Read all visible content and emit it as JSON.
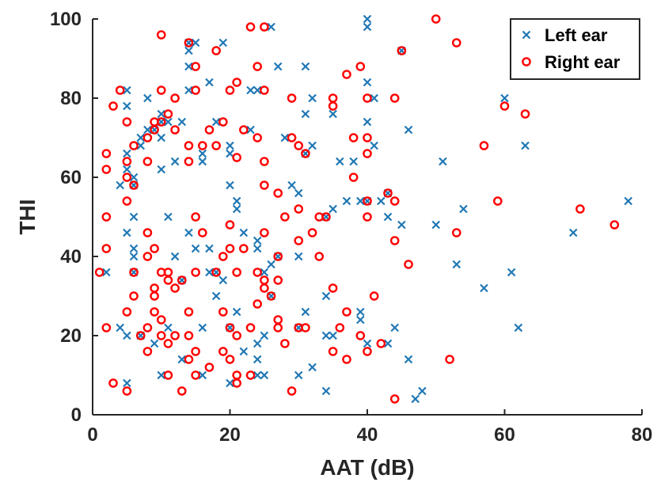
{
  "chart_data": {
    "type": "scatter",
    "xlabel": "AAT (dB)",
    "ylabel": "THI",
    "xlim": [
      0,
      80
    ],
    "ylim": [
      0,
      100
    ],
    "x_ticks": [
      "0",
      "20",
      "40",
      "60",
      "80"
    ],
    "y_ticks": [
      "0",
      "20",
      "40",
      "60",
      "80",
      "100"
    ],
    "grid": false,
    "legend_position": "top-right",
    "series": [
      {
        "name": "Left ear",
        "marker": "x",
        "color": "#1f77b4",
        "points": [
          [
            2,
            36
          ],
          [
            4,
            58
          ],
          [
            4,
            22
          ],
          [
            5,
            8
          ],
          [
            5,
            20
          ],
          [
            5,
            46
          ],
          [
            5,
            62
          ],
          [
            5,
            66
          ],
          [
            5,
            78
          ],
          [
            5,
            82
          ],
          [
            6,
            50
          ],
          [
            6,
            58
          ],
          [
            6,
            60
          ],
          [
            6,
            36
          ],
          [
            6,
            40
          ],
          [
            6,
            42
          ],
          [
            7,
            20
          ],
          [
            7,
            68
          ],
          [
            7,
            70
          ],
          [
            8,
            72
          ],
          [
            8,
            80
          ],
          [
            9,
            72
          ],
          [
            9,
            18
          ],
          [
            10,
            10
          ],
          [
            10,
            62
          ],
          [
            10,
            70
          ],
          [
            10,
            74
          ],
          [
            10,
            76
          ],
          [
            11,
            50
          ],
          [
            11,
            74
          ],
          [
            11,
            22
          ],
          [
            12,
            40
          ],
          [
            12,
            64
          ],
          [
            13,
            74
          ],
          [
            13,
            14
          ],
          [
            13,
            34
          ],
          [
            14,
            46
          ],
          [
            14,
            82
          ],
          [
            14,
            88
          ],
          [
            14,
            92
          ],
          [
            14,
            94
          ],
          [
            15,
            42
          ],
          [
            15,
            94
          ],
          [
            16,
            10
          ],
          [
            16,
            64
          ],
          [
            16,
            66
          ],
          [
            16,
            22
          ],
          [
            17,
            36
          ],
          [
            17,
            42
          ],
          [
            17,
            84
          ],
          [
            18,
            30
          ],
          [
            18,
            36
          ],
          [
            18,
            74
          ],
          [
            19,
            34
          ],
          [
            19,
            94
          ],
          [
            20,
            8
          ],
          [
            20,
            22
          ],
          [
            20,
            58
          ],
          [
            20,
            66
          ],
          [
            20,
            68
          ],
          [
            21,
            26
          ],
          [
            21,
            52
          ],
          [
            21,
            54
          ],
          [
            22,
            16
          ],
          [
            22,
            46
          ],
          [
            23,
            72
          ],
          [
            23,
            82
          ],
          [
            24,
            10
          ],
          [
            24,
            14
          ],
          [
            24,
            18
          ],
          [
            24,
            42
          ],
          [
            24,
            44
          ],
          [
            24,
            82
          ],
          [
            25,
            10
          ],
          [
            25,
            20
          ],
          [
            25,
            36
          ],
          [
            26,
            98
          ],
          [
            26,
            30
          ],
          [
            26,
            38
          ],
          [
            27,
            40
          ],
          [
            27,
            88
          ],
          [
            28,
            70
          ],
          [
            29,
            58
          ],
          [
            30,
            10
          ],
          [
            30,
            22
          ],
          [
            30,
            40
          ],
          [
            30,
            56
          ],
          [
            31,
            26
          ],
          [
            31,
            76
          ],
          [
            31,
            88
          ],
          [
            31,
            66
          ],
          [
            32,
            68
          ],
          [
            32,
            80
          ],
          [
            32,
            12
          ],
          [
            34,
            50
          ],
          [
            34,
            6
          ],
          [
            34,
            20
          ],
          [
            34,
            30
          ],
          [
            35,
            20
          ],
          [
            35,
            52
          ],
          [
            35,
            76
          ],
          [
            36,
            64
          ],
          [
            37,
            54
          ],
          [
            38,
            64
          ],
          [
            39,
            54
          ],
          [
            39,
            24
          ],
          [
            39,
            26
          ],
          [
            40,
            18
          ],
          [
            40,
            54
          ],
          [
            40,
            74
          ],
          [
            40,
            84
          ],
          [
            40,
            98
          ],
          [
            40,
            100
          ],
          [
            41,
            80
          ],
          [
            41,
            68
          ],
          [
            42,
            54
          ],
          [
            43,
            18
          ],
          [
            43,
            50
          ],
          [
            43,
            56
          ],
          [
            44,
            22
          ],
          [
            45,
            48
          ],
          [
            45,
            92
          ],
          [
            46,
            72
          ],
          [
            46,
            14
          ],
          [
            47,
            4
          ],
          [
            48,
            6
          ],
          [
            50,
            48
          ],
          [
            51,
            64
          ],
          [
            53,
            38
          ],
          [
            54,
            52
          ],
          [
            57,
            32
          ],
          [
            60,
            80
          ],
          [
            61,
            36
          ],
          [
            62,
            22
          ],
          [
            63,
            68
          ],
          [
            70,
            46
          ],
          [
            78,
            54
          ]
        ]
      },
      {
        "name": "Right ear",
        "marker": "o",
        "color": "#ff0000",
        "points": [
          [
            1,
            36
          ],
          [
            2,
            22
          ],
          [
            2,
            42
          ],
          [
            2,
            50
          ],
          [
            2,
            62
          ],
          [
            2,
            66
          ],
          [
            3,
            8
          ],
          [
            3,
            78
          ],
          [
            4,
            82
          ],
          [
            5,
            6
          ],
          [
            5,
            26
          ],
          [
            5,
            54
          ],
          [
            5,
            60
          ],
          [
            5,
            64
          ],
          [
            5,
            74
          ],
          [
            6,
            30
          ],
          [
            6,
            36
          ],
          [
            6,
            58
          ],
          [
            6,
            68
          ],
          [
            7,
            20
          ],
          [
            8,
            16
          ],
          [
            8,
            22
          ],
          [
            8,
            40
          ],
          [
            8,
            46
          ],
          [
            8,
            64
          ],
          [
            8,
            70
          ],
          [
            9,
            26
          ],
          [
            9,
            30
          ],
          [
            9,
            32
          ],
          [
            9,
            42
          ],
          [
            9,
            72
          ],
          [
            9,
            74
          ],
          [
            10,
            20
          ],
          [
            10,
            24
          ],
          [
            10,
            36
          ],
          [
            10,
            74
          ],
          [
            10,
            82
          ],
          [
            10,
            96
          ],
          [
            11,
            10
          ],
          [
            11,
            18
          ],
          [
            11,
            34
          ],
          [
            11,
            36
          ],
          [
            11,
            76
          ],
          [
            12,
            20
          ],
          [
            12,
            32
          ],
          [
            12,
            72
          ],
          [
            12,
            80
          ],
          [
            13,
            6
          ],
          [
            13,
            34
          ],
          [
            14,
            14
          ],
          [
            14,
            20
          ],
          [
            14,
            26
          ],
          [
            14,
            64
          ],
          [
            14,
            68
          ],
          [
            14,
            94
          ],
          [
            15,
            10
          ],
          [
            15,
            16
          ],
          [
            15,
            36
          ],
          [
            15,
            50
          ],
          [
            15,
            82
          ],
          [
            15,
            88
          ],
          [
            16,
            46
          ],
          [
            16,
            68
          ],
          [
            17,
            12
          ],
          [
            17,
            72
          ],
          [
            18,
            36
          ],
          [
            18,
            68
          ],
          [
            18,
            92
          ],
          [
            19,
            16
          ],
          [
            19,
            26
          ],
          [
            19,
            40
          ],
          [
            19,
            74
          ],
          [
            20,
            14
          ],
          [
            20,
            22
          ],
          [
            20,
            42
          ],
          [
            20,
            48
          ],
          [
            20,
            82
          ],
          [
            21,
            8
          ],
          [
            21,
            10
          ],
          [
            21,
            20
          ],
          [
            21,
            36
          ],
          [
            21,
            65
          ],
          [
            21,
            84
          ],
          [
            22,
            42
          ],
          [
            22,
            72
          ],
          [
            23,
            10
          ],
          [
            23,
            22
          ],
          [
            23,
            98
          ],
          [
            24,
            28
          ],
          [
            24,
            36
          ],
          [
            24,
            70
          ],
          [
            24,
            88
          ],
          [
            25,
            32
          ],
          [
            25,
            34
          ],
          [
            25,
            46
          ],
          [
            25,
            58
          ],
          [
            25,
            64
          ],
          [
            25,
            82
          ],
          [
            25,
            98
          ],
          [
            26,
            30
          ],
          [
            27,
            22
          ],
          [
            27,
            24
          ],
          [
            27,
            34
          ],
          [
            27,
            40
          ],
          [
            27,
            56
          ],
          [
            28,
            18
          ],
          [
            28,
            50
          ],
          [
            29,
            6
          ],
          [
            29,
            70
          ],
          [
            29,
            80
          ],
          [
            30,
            22
          ],
          [
            30,
            44
          ],
          [
            30,
            52
          ],
          [
            30,
            68
          ],
          [
            31,
            22
          ],
          [
            31,
            66
          ],
          [
            32,
            46
          ],
          [
            33,
            40
          ],
          [
            33,
            50
          ],
          [
            34,
            50
          ],
          [
            35,
            16
          ],
          [
            35,
            32
          ],
          [
            35,
            78
          ],
          [
            35,
            80
          ],
          [
            36,
            22
          ],
          [
            37,
            14
          ],
          [
            37,
            26
          ],
          [
            37,
            86
          ],
          [
            38,
            60
          ],
          [
            38,
            70
          ],
          [
            39,
            20
          ],
          [
            39,
            88
          ],
          [
            40,
            16
          ],
          [
            40,
            50
          ],
          [
            40,
            54
          ],
          [
            40,
            66
          ],
          [
            40,
            70
          ],
          [
            40,
            80
          ],
          [
            41,
            30
          ],
          [
            42,
            18
          ],
          [
            43,
            56
          ],
          [
            44,
            4
          ],
          [
            44,
            44
          ],
          [
            44,
            54
          ],
          [
            44,
            80
          ],
          [
            45,
            92
          ],
          [
            46,
            38
          ],
          [
            50,
            100
          ],
          [
            52,
            14
          ],
          [
            53,
            46
          ],
          [
            53,
            94
          ],
          [
            57,
            68
          ],
          [
            59,
            54
          ],
          [
            60,
            78
          ],
          [
            63,
            76
          ],
          [
            71,
            52
          ],
          [
            76,
            48
          ]
        ]
      }
    ]
  }
}
